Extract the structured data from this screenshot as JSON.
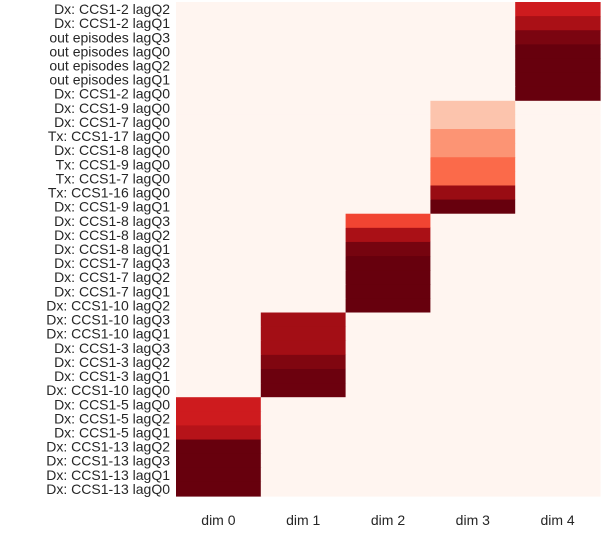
{
  "chart_data": {
    "type": "heatmap",
    "x_categories": [
      "dim 0",
      "dim 1",
      "dim 2",
      "dim 3",
      "dim 4"
    ],
    "y_categories": [
      "Dx: CCS1-2 lagQ2",
      "Dx: CCS1-2 lagQ1",
      "out episodes lagQ3",
      "out episodes lagQ0",
      "out episodes lagQ2",
      "out episodes lagQ1",
      "Dx: CCS1-2 lagQ0",
      "Dx: CCS1-9 lagQ0",
      "Dx: CCS1-7 lagQ0",
      "Tx: CCS1-17 lagQ0",
      "Dx: CCS1-8 lagQ0",
      "Tx: CCS1-9 lagQ0",
      "Tx: CCS1-7 lagQ0",
      "Tx: CCS1-16 lagQ0",
      "Dx: CCS1-9 lagQ1",
      "Dx: CCS1-8 lagQ3",
      "Dx: CCS1-8 lagQ2",
      "Dx: CCS1-8 lagQ1",
      "Dx: CCS1-7 lagQ3",
      "Dx: CCS1-7 lagQ2",
      "Dx: CCS1-7 lagQ1",
      "Dx: CCS1-10 lagQ2",
      "Dx: CCS1-10 lagQ3",
      "Dx: CCS1-10 lagQ1",
      "Dx: CCS1-3 lagQ3",
      "Dx: CCS1-3 lagQ2",
      "Dx: CCS1-3 lagQ1",
      "Dx: CCS1-10 lagQ0",
      "Dx: CCS1-5 lagQ0",
      "Dx: CCS1-5 lagQ2",
      "Dx: CCS1-5 lagQ1",
      "Dx: CCS1-13 lagQ2",
      "Dx: CCS1-13 lagQ3",
      "Dx: CCS1-13 lagQ1",
      "Dx: CCS1-13 lagQ0"
    ],
    "values": [
      [
        0,
        0,
        0,
        0,
        0.74
      ],
      [
        0,
        0,
        0,
        0,
        0.86
      ],
      [
        0,
        0,
        0,
        0,
        0.96
      ],
      [
        0,
        0,
        0,
        0,
        1.0
      ],
      [
        0,
        0,
        0,
        0,
        1.0
      ],
      [
        0,
        0,
        0,
        0,
        1.0
      ],
      [
        0,
        0,
        0,
        0,
        1.0
      ],
      [
        0,
        0,
        0,
        0.22,
        0
      ],
      [
        0,
        0,
        0,
        0.22,
        0
      ],
      [
        0,
        0,
        0,
        0.37,
        0
      ],
      [
        0,
        0,
        0,
        0.37,
        0
      ],
      [
        0,
        0,
        0,
        0.5,
        0
      ],
      [
        0,
        0,
        0,
        0.5,
        0
      ],
      [
        0,
        0,
        0,
        0.9,
        0
      ],
      [
        0,
        0,
        0,
        1.0,
        0
      ],
      [
        0,
        0,
        0.6,
        0,
        0
      ],
      [
        0,
        0,
        0.86,
        0,
        0
      ],
      [
        0,
        0,
        0.97,
        0,
        0
      ],
      [
        0,
        0,
        1.0,
        0,
        0
      ],
      [
        0,
        0,
        1.0,
        0,
        0
      ],
      [
        0,
        0,
        1.0,
        0,
        0
      ],
      [
        0,
        0,
        1.0,
        0,
        0
      ],
      [
        0,
        0.88,
        0,
        0,
        0
      ],
      [
        0,
        0.88,
        0,
        0,
        0
      ],
      [
        0,
        0.88,
        0,
        0,
        0
      ],
      [
        0,
        0.95,
        0,
        0,
        0
      ],
      [
        0,
        0.99,
        0,
        0,
        0
      ],
      [
        0,
        0.99,
        0,
        0,
        0
      ],
      [
        0.74,
        0,
        0,
        0,
        0
      ],
      [
        0.74,
        0,
        0,
        0,
        0
      ],
      [
        0.82,
        0,
        0,
        0,
        0
      ],
      [
        1.0,
        0,
        0,
        0,
        0
      ],
      [
        1.0,
        0,
        0,
        0,
        0
      ],
      [
        1.0,
        0,
        0,
        0,
        0
      ],
      [
        1.0,
        0,
        0,
        0,
        0
      ]
    ],
    "colormap": "Reds",
    "colorbar": false,
    "grid": false,
    "title": "",
    "xlabel": "",
    "ylabel": ""
  }
}
